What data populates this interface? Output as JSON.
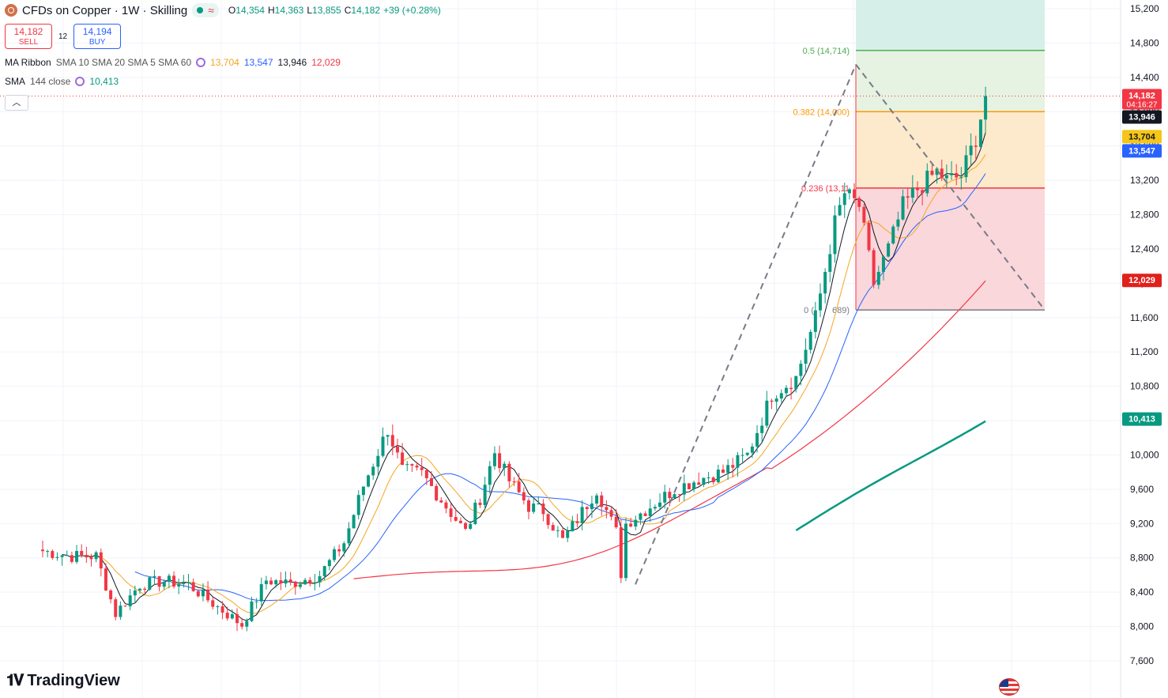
{
  "header": {
    "symbol": "CFDs on Copper · 1W · Skilling",
    "ohlc": [
      {
        "k": "O",
        "v": "14,354"
      },
      {
        "k": "H",
        "v": "14,363"
      },
      {
        "k": "L",
        "v": "13,855"
      },
      {
        "k": "C",
        "v": "14,182"
      },
      {
        "k": "",
        "v": "+39 (+0.28%)"
      }
    ]
  },
  "trade": {
    "sell_price": "14,182",
    "sell_label": "SELL",
    "spread": "12",
    "buy_price": "14,194",
    "buy_label": "BUY"
  },
  "indicators": {
    "ribbon_label": "MA Ribbon",
    "ribbon_params": "SMA 10 SMA 20 SMA 5 SMA 60",
    "ribbon_values": [
      {
        "v": "13,704",
        "color": "#f5a623"
      },
      {
        "v": "13,547",
        "color": "#2962ff"
      },
      {
        "v": "13,946",
        "color": "#131722"
      },
      {
        "v": "12,029",
        "color": "#f23645"
      }
    ],
    "sma_label": "SMA",
    "sma_params": "144 close",
    "sma_value": "10,413",
    "sma_color": "#089981"
  },
  "colors": {
    "up": "#089981",
    "down": "#f23645"
  },
  "brand": "TradingView",
  "chart_data": {
    "type": "candlestick",
    "ylim": [
      7400,
      15300
    ],
    "yticks": [
      7600,
      8000,
      8400,
      8800,
      9200,
      9600,
      10000,
      10400,
      10800,
      11200,
      11600,
      12000,
      12400,
      12800,
      13200,
      13600,
      14000,
      14400,
      14800,
      15200
    ],
    "ytick_labels": [
      "7,600",
      "8,000",
      "8,400",
      "8,800",
      "9,200",
      "9,600",
      "10,000",
      "10,400",
      "10,800",
      "11,200",
      "11,600",
      "12,000",
      "12,400",
      "12,800",
      "13,200",
      "13,600",
      "14,000",
      "14,400",
      "14,800",
      "15,200"
    ],
    "candle_count": 120,
    "anchors": [
      [
        0,
        8880
      ],
      [
        6,
        8820
      ],
      [
        11,
        8820
      ],
      [
        15,
        8150
      ],
      [
        20,
        8490
      ],
      [
        25,
        8530
      ],
      [
        30,
        8490
      ],
      [
        35,
        8270
      ],
      [
        41,
        8020
      ],
      [
        46,
        8540
      ],
      [
        51,
        8500
      ],
      [
        57,
        8600
      ],
      [
        62,
        8980
      ],
      [
        66,
        9640
      ],
      [
        71,
        10300
      ],
      [
        74,
        9820
      ],
      [
        78,
        9780
      ],
      [
        83,
        9400
      ],
      [
        87,
        9100
      ],
      [
        90,
        9500
      ],
      [
        93,
        10030
      ],
      [
        96,
        9700
      ],
      [
        100,
        9400
      ],
      [
        103,
        9350
      ],
      [
        107,
        9000
      ],
      [
        110,
        9250
      ],
      [
        114,
        9600
      ],
      [
        116,
        9350
      ],
      [
        118,
        9100
      ],
      [
        119,
        8620
      ]
    ],
    "anchors_tail": [
      [
        120,
        9200
      ],
      [
        125,
        9400
      ],
      [
        130,
        9600
      ],
      [
        135,
        9720
      ],
      [
        140,
        9800
      ],
      [
        145,
        10000
      ],
      [
        150,
        10700
      ],
      [
        155,
        10900
      ],
      [
        159,
        11600
      ],
      [
        163,
        12700
      ],
      [
        165,
        13050
      ],
      [
        168,
        12900
      ],
      [
        171,
        12000
      ],
      [
        174,
        12400
      ],
      [
        177,
        12900
      ],
      [
        180,
        13100
      ],
      [
        184,
        13300
      ],
      [
        186,
        13200
      ],
      [
        189,
        13250
      ],
      [
        192,
        13700
      ],
      [
        194,
        14182
      ]
    ],
    "annotated_levels": [
      {
        "label": "0.5 (14,714)",
        "value": 14714,
        "color": "#4caf50"
      },
      {
        "label": "0.382 (14,000)",
        "value": 14000,
        "color": "#ff9800"
      },
      {
        "label": "0.236 (13,11",
        "value": 13110,
        "color": "#f23645"
      },
      {
        "label": "0 (",
        "value": 11689,
        "color": "#787b86"
      },
      {
        "label": "689)",
        "value": 11689,
        "color": "#787b86"
      }
    ],
    "price_tags": [
      {
        "v": "14,182",
        "value": 14182,
        "bg": "#f23645",
        "fg": "#ffffff",
        "sub": "04:16:27"
      },
      {
        "v": "13,946",
        "value": 13946,
        "bg": "#131722",
        "fg": "#ffffff"
      },
      {
        "v": "13,704",
        "value": 13704,
        "bg": "#f5c518",
        "fg": "#131722"
      },
      {
        "v": "13,547",
        "value": 13547,
        "bg": "#2962ff",
        "fg": "#ffffff"
      },
      {
        "v": "12,029",
        "value": 12029,
        "bg": "#e0201c",
        "fg": "#ffffff"
      },
      {
        "v": "10,413",
        "value": 10413,
        "bg": "#089981",
        "fg": "#ffffff"
      }
    ],
    "fib_low": 11689,
    "fib_high": 15300,
    "ma_labels": [
      "SMA 5",
      "SMA 10",
      "SMA 20",
      "SMA 60",
      "SMA 144"
    ]
  }
}
